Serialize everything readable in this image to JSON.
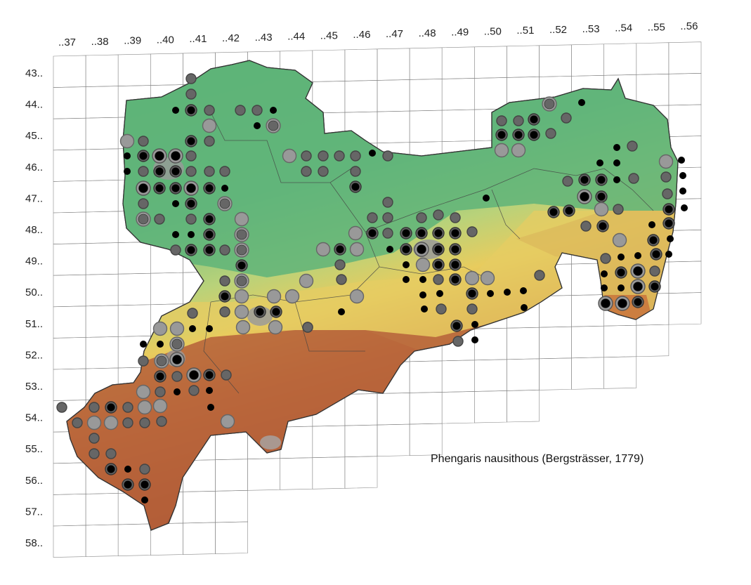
{
  "map": {
    "species_title": "Phengaris nausithous (Bergsträsser, 1779)",
    "column_labels": [
      "..37",
      "..38",
      "..39",
      "..40",
      "..41",
      "..42",
      "..43",
      "..44",
      "..45",
      "..46",
      "..47",
      "..48",
      "..49",
      "..50",
      "..51",
      "..52",
      "..53",
      "..54",
      "..55",
      "..56"
    ],
    "row_labels": [
      "43..",
      "44..",
      "45..",
      "46..",
      "47..",
      "48..",
      "49..",
      "50..",
      "51..",
      "52..",
      "53..",
      "54..",
      "55..",
      "56..",
      "57..",
      "58.."
    ],
    "legend_title": "",
    "dot_style_colors": {
      "black_small": "#000000",
      "dark_gray_medium": "#666666",
      "light_gray_large": "#999999",
      "combined_ring": "#333333"
    },
    "terrain_colors": {
      "lowland": "#5fb87a",
      "lower_hills": "#a8d07a",
      "middle_hills": "#e8c860",
      "upper_hills": "#c8703a",
      "mountains": "#a05030",
      "urban": "#9a9a9a"
    }
  }
}
